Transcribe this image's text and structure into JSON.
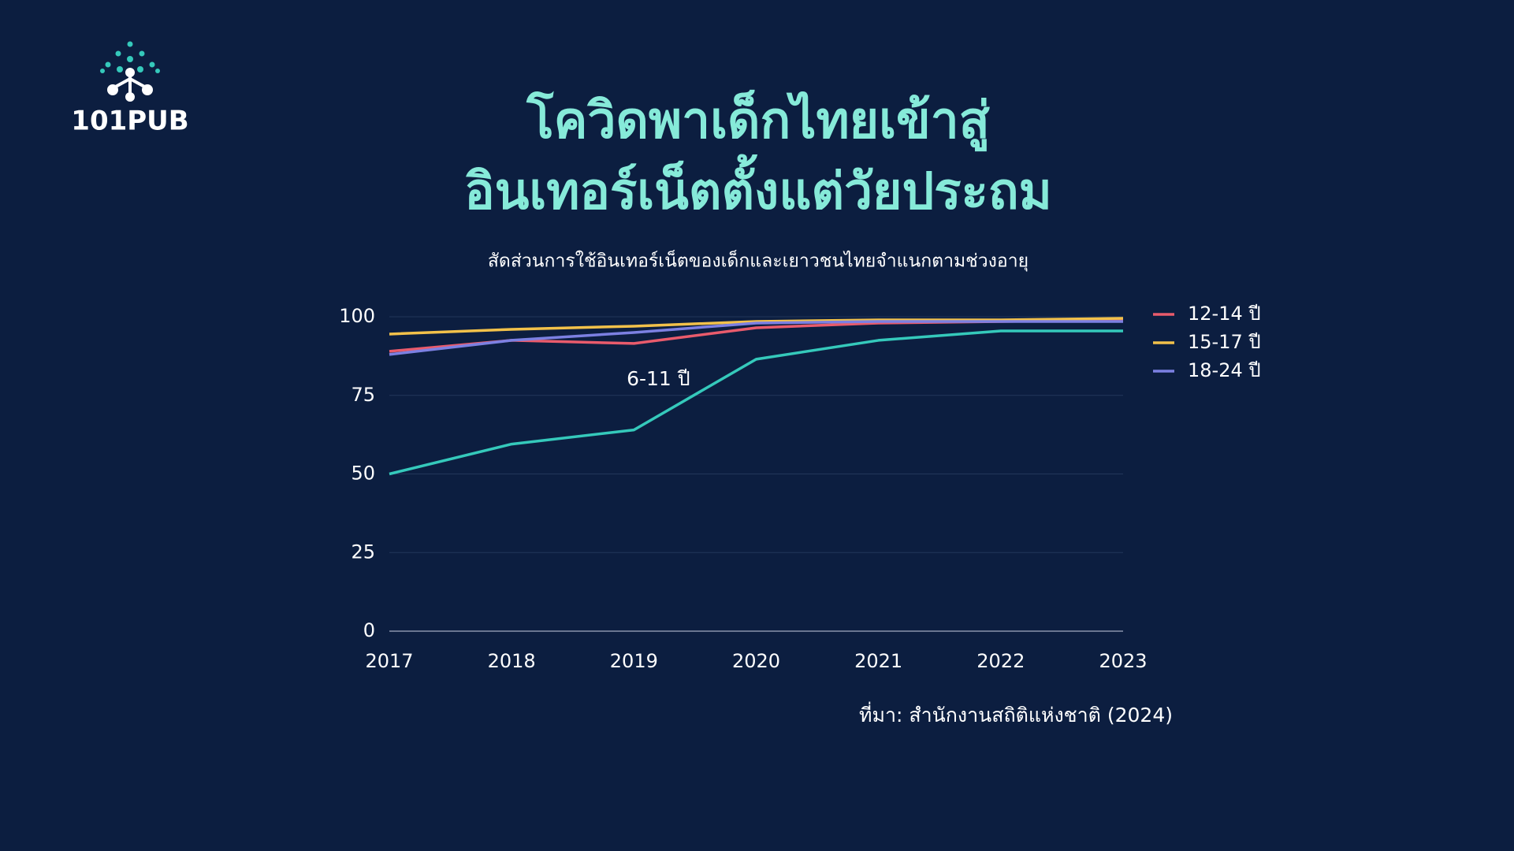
{
  "logo": "101PUB",
  "chart_data": {
    "type": "line",
    "title": [
      "โควิดพาเด็กไทยเข้าสู่",
      "อินเทอร์เน็ตตั้งแต่วัยประถม"
    ],
    "subtitle": "สัดส่วนการใช้อินเทอร์เน็ตของเด็กและเยาวชนไทยจำแนกตามช่วงอายุ",
    "source": "ที่มา:  สำนักงานสถิติแห่งชาติ (2024)",
    "categories": [
      "2017",
      "2018",
      "2019",
      "2020",
      "2021",
      "2022",
      "2023"
    ],
    "series": [
      {
        "name": "6-11 ปี",
        "color": "#35c9bb",
        "legend": false,
        "values": [
          50,
          59.5,
          64,
          86.5,
          92.5,
          95.5,
          95.5
        ]
      },
      {
        "name": "12-14 ปี",
        "color": "#e95b6c",
        "values": [
          89,
          92.5,
          91.5,
          96.5,
          98,
          98.5,
          99
        ]
      },
      {
        "name": "15-17 ปี",
        "color": "#f2c14a",
        "values": [
          94.5,
          96,
          97,
          98.5,
          99,
          99,
          99.5
        ]
      },
      {
        "name": "18-24 ปี",
        "color": "#7c80e2",
        "values": [
          88,
          92.5,
          95,
          98,
          98.5,
          98.5,
          98.5
        ]
      }
    ],
    "ylim": [
      0,
      100
    ],
    "yticks": [
      0,
      25,
      50,
      75,
      100
    ],
    "grid": true
  }
}
